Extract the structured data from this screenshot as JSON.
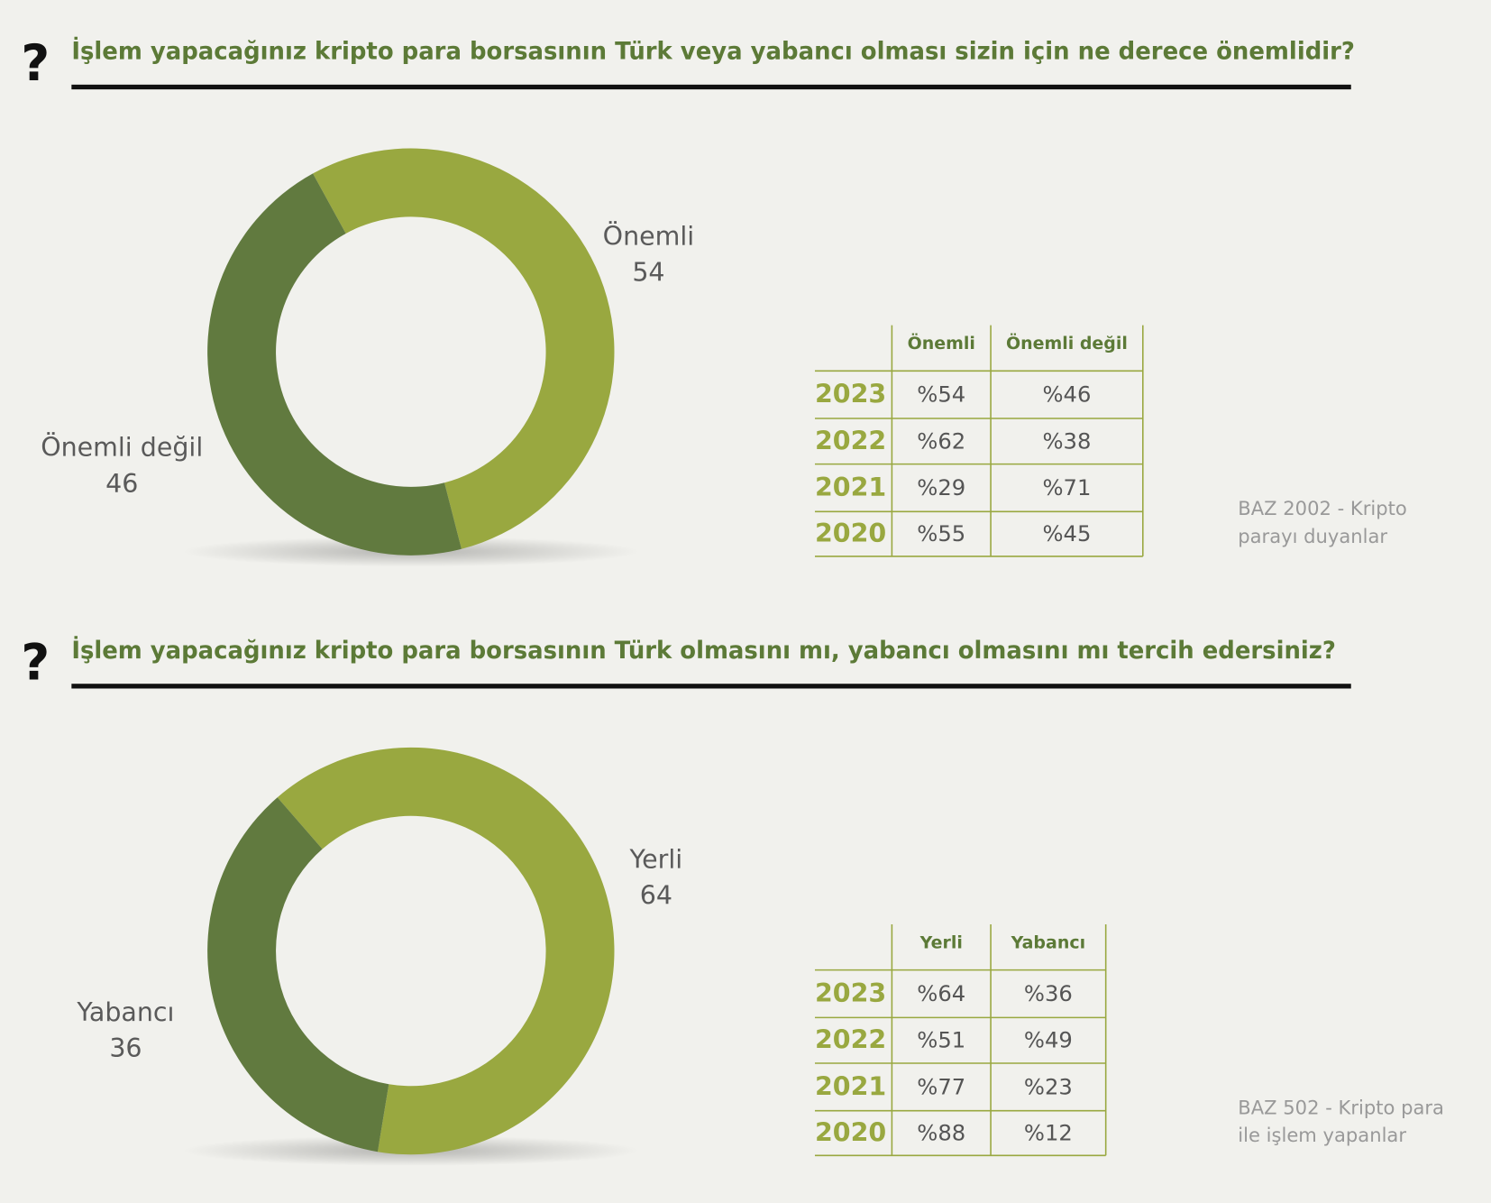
{
  "chart_data": [
    {
      "type": "donut",
      "icon": "?",
      "title": "İşlem yapacağınız kripto para borsasının Türk veya yabancı olması sizin için ne derece önemlidir?",
      "categories": [
        "Önemli",
        "Önemli değil"
      ],
      "values": [
        54,
        46
      ],
      "colors": [
        "#99a840",
        "#617a3f"
      ],
      "table": {
        "columns": [
          "Önemli",
          "Önemli değil"
        ],
        "rows": [
          [
            "2023",
            "%54",
            "%46"
          ],
          [
            "2022",
            "%62",
            "%38"
          ],
          [
            "2021",
            "%29",
            "%71"
          ],
          [
            "2020",
            "%55",
            "%45"
          ]
        ]
      },
      "note": [
        "BAZ 2002 - Kripto",
        "parayı duyanlar"
      ]
    },
    {
      "type": "donut",
      "icon": "?",
      "title": "İşlem yapacağınız kripto para borsasının Türk olmasını mı, yabancı olmasını mı tercih edersiniz?",
      "categories": [
        "Yerli",
        "Yabancı"
      ],
      "values": [
        64,
        36
      ],
      "colors": [
        "#99a840",
        "#617a3f"
      ],
      "table": {
        "columns": [
          "Yerli",
          "Yabancı"
        ],
        "rows": [
          [
            "2023",
            "%64",
            "%36"
          ],
          [
            "2022",
            "%51",
            "%49"
          ],
          [
            "2021",
            "%77",
            "%23"
          ],
          [
            "2020",
            "%88",
            "%12"
          ]
        ]
      },
      "note": [
        "BAZ 502 - Kripto para",
        "ile işlem yapanlar"
      ]
    }
  ]
}
